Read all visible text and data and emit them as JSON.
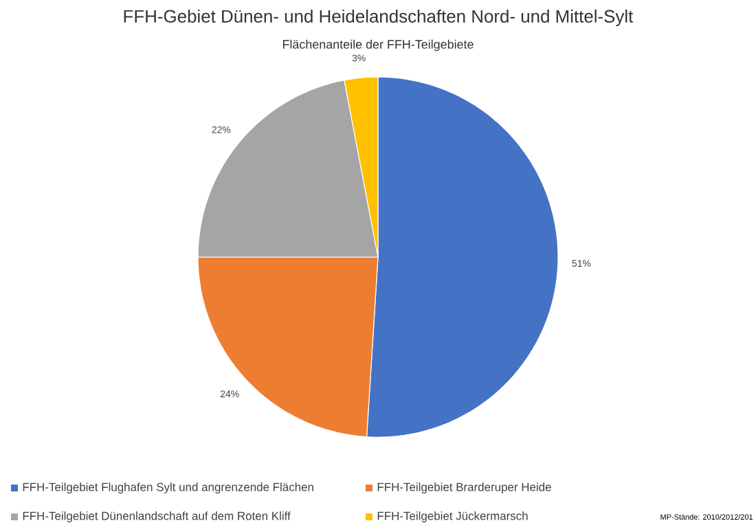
{
  "chart_data": {
    "type": "pie",
    "title": "FFH-Gebiet Dünen- und Heidelandschaften Nord- und Mittel-Sylt",
    "subtitle": "Flächenanteile der FFH-Teilgebiete",
    "categories": [
      "FFH-Teilgebiet Flughafen Sylt und angrenzende Flächen",
      "FFH-Teilgebiet Brarderuper Heide",
      "FFH-Teilgebiet Dünenlandschaft auf dem Roten Kliff",
      "FFH-Teilgebiet Jückermarsch"
    ],
    "values": [
      51,
      24,
      22,
      3
    ],
    "value_labels": [
      "51%",
      "24%",
      "22%",
      "3%"
    ],
    "colors": [
      "#4472c4",
      "#ed7d31",
      "#a5a5a5",
      "#ffc000"
    ],
    "legend": "bottom",
    "annotations": [
      "MP-Stände: 2010/2012/201"
    ]
  }
}
